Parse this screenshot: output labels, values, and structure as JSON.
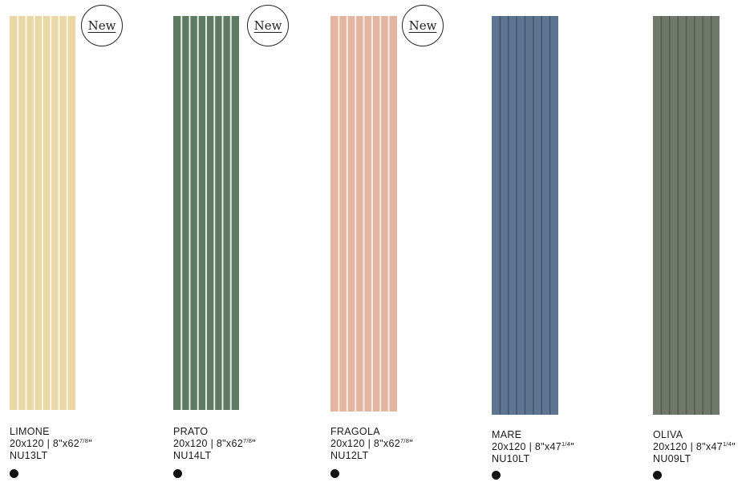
{
  "products": [
    {
      "name": "LIMONE",
      "size_main": "20x120 | 8\"x62",
      "size_frac": "7/8",
      "size_tail": "\"",
      "code": "NU13LT",
      "badge": "New",
      "color": "#e9d7a6",
      "line_color": "#fbf6e6",
      "style": "light-lines"
    },
    {
      "name": "PRATO",
      "size_main": "20x120 | 8\"x62",
      "size_frac": "7/8",
      "size_tail": "\"",
      "code": "NU14LT",
      "badge": "New",
      "color": "#5f7a62",
      "line_color": "#e7ece4",
      "style": "light-lines"
    },
    {
      "name": "FRAGOLA",
      "size_main": "20x120 | 8\"x62",
      "size_frac": "7/8",
      "size_tail": "\"",
      "code": "NU12LT",
      "badge": "New",
      "color": "#e2b5a0",
      "line_color": "#f8ebe4",
      "style": "light-lines"
    },
    {
      "name": "MARE",
      "size_main": "20x120 | 8\"x47",
      "size_frac": "1/4",
      "size_tail": "\"",
      "code": "NU10LT",
      "badge": "",
      "color": "#5e7592",
      "line_color": "#3d4f66",
      "style": "dark-lines"
    },
    {
      "name": "OLIVA",
      "size_main": "20x120 | 8\"x47",
      "size_frac": "1/4",
      "size_tail": "\"",
      "code": "NU09LT",
      "badge": "",
      "color": "#6f786b",
      "line_color": "#4f574c",
      "style": "dark-lines"
    }
  ]
}
